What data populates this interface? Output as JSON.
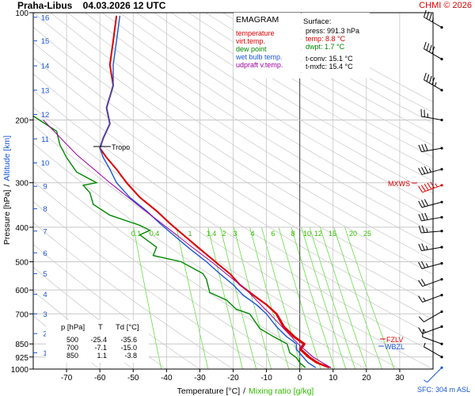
{
  "chart_data": {
    "type": "line",
    "title": "Praha-Libus    04.03.2026 12 UTC",
    "credit": "CHMI © 2026",
    "xlabel": "Temperature [°C]",
    "xlabel_sep": "/",
    "xlabel2": "Mixing ratio [g/kg]",
    "ylabel": "Pressure [hPa]",
    "ylabel_sep": "/",
    "ylabel2": "Altitude [km]",
    "xlim": [
      -80,
      40
    ],
    "ylim": [
      1000,
      100
    ],
    "y_scale": "log",
    "x_ticks": [
      "-70",
      "-60",
      "-50",
      "-40",
      "-30",
      "-20",
      "-10",
      "0",
      "10",
      "20",
      "30"
    ],
    "y_ticks": [
      "100",
      "200",
      "300",
      "400",
      "500",
      "600",
      "700",
      "850",
      "925",
      "1000"
    ],
    "altitude_ticks": [
      {
        "km": "1",
        "p": 900
      },
      {
        "km": "2",
        "p": 795
      },
      {
        "km": "3",
        "p": 700
      },
      {
        "km": "4",
        "p": 617
      },
      {
        "km": "5",
        "p": 540
      },
      {
        "km": "6",
        "p": 472
      },
      {
        "km": "7",
        "p": 410
      },
      {
        "km": "8",
        "p": 355
      },
      {
        "km": "9",
        "p": 307
      },
      {
        "km": "10",
        "p": 264
      },
      {
        "km": "11",
        "p": 226
      },
      {
        "km": "12",
        "p": 193
      },
      {
        "km": "13",
        "p": 165
      },
      {
        "km": "14",
        "p": 141
      },
      {
        "km": "15",
        "p": 120
      },
      {
        "km": "16",
        "p": 103
      }
    ],
    "mixing_ratio_labels": [
      "0.1",
      "0.4",
      "1",
      "1.4",
      "2",
      "3",
      "4",
      "6",
      "8",
      "10",
      "12",
      "15",
      "20",
      "25"
    ],
    "legend": {
      "title": "EMAGRAM",
      "entries": [
        {
          "label": "temperature",
          "color": "#dd0000"
        },
        {
          "label": "virt.temp.",
          "color": "#dd0000"
        },
        {
          "label": "dew point",
          "color": "#008800"
        },
        {
          "label": "wet bulb temp.",
          "color": "#1a56d6"
        },
        {
          "label": "udpraft v.temp.",
          "color": "#a000a0"
        }
      ]
    },
    "surface": {
      "title": "Surface:",
      "press": "press: 991.3 hPa",
      "temp": "temp: 8.8 °C",
      "dwpt": "dwpt: 1.7 °C",
      "tconv": "t-conv: 15.1 °C",
      "tmxfc": "t-mxfc: 15.4 °C"
    },
    "table": {
      "headers": [
        "p [hPa]",
        "T",
        "Td [°C]"
      ],
      "rows": [
        [
          "500",
          "-25.4",
          "-35.6"
        ],
        [
          "700",
          "-7.1",
          "-15.0"
        ],
        [
          "850",
          "1.1",
          "-3.8"
        ]
      ]
    },
    "markers": {
      "tropo": "Tropo",
      "mxws": "MXWS",
      "fzlv": "FZLV",
      "wbzl": "WBZL",
      "sfc": "SFC: 304 m ASL"
    },
    "series": [
      {
        "name": "temperature",
        "color": "#dd0000",
        "points": [
          [
            8.8,
            991
          ],
          [
            5,
            960
          ],
          [
            2.5,
            925
          ],
          [
            0,
            880
          ],
          [
            1.1,
            850
          ],
          [
            -2,
            810
          ],
          [
            -5,
            760
          ],
          [
            -7.1,
            700
          ],
          [
            -10,
            660
          ],
          [
            -14,
            620
          ],
          [
            -18,
            580
          ],
          [
            -21,
            540
          ],
          [
            -25.4,
            500
          ],
          [
            -30,
            460
          ],
          [
            -35,
            420
          ],
          [
            -39,
            390
          ],
          [
            -43,
            360
          ],
          [
            -48,
            330
          ],
          [
            -52,
            300
          ],
          [
            -55,
            275
          ],
          [
            -58,
            255
          ],
          [
            -60,
            240
          ],
          [
            -59,
            225
          ],
          [
            -57,
            205
          ],
          [
            -58,
            185
          ],
          [
            -56,
            160
          ],
          [
            -57,
            140
          ],
          [
            -56,
            120
          ],
          [
            -55,
            102
          ]
        ]
      },
      {
        "name": "virt.temp.",
        "color": "#dd0000",
        "points": [
          [
            9.3,
            991
          ],
          [
            5.6,
            960
          ],
          [
            3,
            925
          ],
          [
            0.5,
            880
          ],
          [
            1.6,
            850
          ],
          [
            -1.5,
            810
          ],
          [
            -4.6,
            760
          ],
          [
            -6.8,
            700
          ],
          [
            -9.8,
            660
          ],
          [
            -13.8,
            620
          ],
          [
            -17.9,
            580
          ],
          [
            -20.9,
            540
          ],
          [
            -25.3,
            500
          ],
          [
            -29.9,
            460
          ],
          [
            -34.9,
            420
          ],
          [
            -38.9,
            390
          ],
          [
            -42.9,
            360
          ],
          [
            -47.9,
            330
          ],
          [
            -51.9,
            300
          ]
        ]
      },
      {
        "name": "dew point",
        "color": "#008800",
        "points": [
          [
            1.7,
            991
          ],
          [
            0,
            960
          ],
          [
            -1,
            930
          ],
          [
            -3,
            900
          ],
          [
            -3.8,
            850
          ],
          [
            -8,
            810
          ],
          [
            -12,
            770
          ],
          [
            -15,
            700
          ],
          [
            -19,
            680
          ],
          [
            -22,
            640
          ],
          [
            -27,
            610
          ],
          [
            -28,
            560
          ],
          [
            -29,
            540
          ],
          [
            -35.6,
            500
          ],
          [
            -44,
            480
          ],
          [
            -43,
            455
          ],
          [
            -48,
            420
          ],
          [
            -45,
            408
          ],
          [
            -48,
            395
          ],
          [
            -57,
            370
          ],
          [
            -62,
            345
          ],
          [
            -63,
            320
          ],
          [
            -65,
            305
          ],
          [
            -61,
            300
          ],
          [
            -67,
            280
          ],
          [
            -70,
            255
          ],
          [
            -72,
            235
          ],
          [
            -73,
            215
          ],
          [
            -80,
            195
          ]
        ]
      },
      {
        "name": "wet bulb temp.",
        "color": "#1a56d6",
        "points": [
          [
            4.8,
            991
          ],
          [
            2.5,
            960
          ],
          [
            1,
            925
          ],
          [
            -1,
            880
          ],
          [
            -1,
            850
          ],
          [
            -4,
            810
          ],
          [
            -7,
            760
          ],
          [
            -10,
            700
          ],
          [
            -13,
            660
          ],
          [
            -17,
            620
          ],
          [
            -20,
            580
          ],
          [
            -24,
            540
          ],
          [
            -28,
            500
          ],
          [
            -33,
            460
          ],
          [
            -38,
            420
          ],
          [
            -42,
            390
          ],
          [
            -46,
            360
          ],
          [
            -51,
            330
          ],
          [
            -55,
            300
          ],
          [
            -57,
            275
          ],
          [
            -59,
            255
          ],
          [
            -60,
            240
          ],
          [
            -59,
            225
          ],
          [
            -57,
            205
          ],
          [
            -58,
            185
          ],
          [
            -56,
            160
          ],
          [
            -56,
            140
          ],
          [
            -55,
            120
          ],
          [
            -54,
            102
          ]
        ]
      },
      {
        "name": "udpraft v.temp.",
        "color": "#a000a0",
        "points": [
          [
            9.3,
            991
          ],
          [
            4,
            925
          ],
          [
            -0.5,
            850
          ],
          [
            -9,
            700
          ],
          [
            -16,
            600
          ],
          [
            -26.5,
            500
          ],
          [
            -33,
            450
          ],
          [
            -40,
            400
          ],
          [
            -48,
            350
          ],
          [
            -57,
            300
          ],
          [
            -67,
            250
          ],
          [
            -77,
            200
          ]
        ]
      }
    ],
    "wind_barbs": [
      {
        "p": 110,
        "dir": 300,
        "speed": 35
      },
      {
        "p": 135,
        "dir": 300,
        "speed": 40
      },
      {
        "p": 165,
        "dir": 300,
        "speed": 45
      },
      {
        "p": 200,
        "dir": 280,
        "speed": 25
      },
      {
        "p": 240,
        "dir": 260,
        "speed": 30
      },
      {
        "p": 275,
        "dir": 255,
        "speed": 35
      },
      {
        "p": 305,
        "dir": 250,
        "speed": 55
      },
      {
        "p": 340,
        "dir": 255,
        "speed": 30
      },
      {
        "p": 375,
        "dir": 260,
        "speed": 30
      },
      {
        "p": 410,
        "dir": 265,
        "speed": 25
      },
      {
        "p": 455,
        "dir": 260,
        "speed": 25
      },
      {
        "p": 505,
        "dir": 255,
        "speed": 25
      },
      {
        "p": 560,
        "dir": 250,
        "speed": 20
      },
      {
        "p": 620,
        "dir": 250,
        "speed": 15
      },
      {
        "p": 690,
        "dir": 240,
        "speed": 10
      },
      {
        "p": 760,
        "dir": 250,
        "speed": 15
      },
      {
        "p": 850,
        "dir": 290,
        "speed": 10
      },
      {
        "p": 925,
        "dir": 300,
        "speed": 5
      },
      {
        "p": 991,
        "dir": 225,
        "speed": 5
      }
    ],
    "colors": {
      "frame": "#000000",
      "isotherm": "#bdbdbd",
      "isobar": "#c8c8c8",
      "dry_adiabat": "#c8c8c8",
      "mixing_ratio": "#66dd44",
      "zero_line": "#333333",
      "label_blue": "#1a56d6",
      "label_green": "#33bb00"
    },
    "grid": true,
    "legend_position": "top-right"
  }
}
